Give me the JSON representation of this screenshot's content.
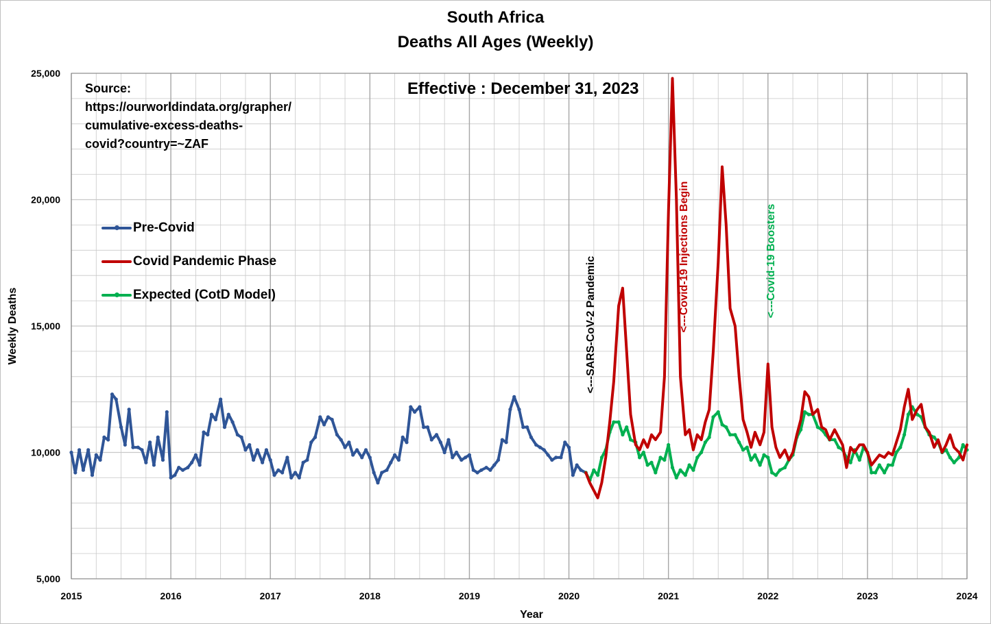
{
  "title": "South Africa",
  "subtitle": "Deaths All Ages (Weekly)",
  "source_lines": [
    "Source:",
    "https://ourworldindata.org/grapher/",
    "cumulative-excess-deaths-",
    "covid?country=~ZAF"
  ],
  "effective_label": "Effective : December 31, 2023",
  "colors": {
    "pre_covid": "#2f5597",
    "covid": "#c00000",
    "expected": "#00b050",
    "grid": "#c8c8c8",
    "annotation_black": "#000000"
  },
  "legend": [
    {
      "label": "Pre-Covid",
      "color": "#2f5597",
      "marker": true
    },
    {
      "label": "Covid Pandemic Phase",
      "color": "#c00000",
      "marker": false
    },
    {
      "label": "Expected (CotD Model)",
      "color": "#00b050",
      "marker": true
    }
  ],
  "chart_data": {
    "type": "line",
    "xlabel": "Year",
    "ylabel": "Weekly Deaths",
    "xlim": [
      2015,
      2024
    ],
    "ylim": [
      5000,
      25000
    ],
    "x_ticks": [
      "2015",
      "2016",
      "2017",
      "2018",
      "2019",
      "2020",
      "2021",
      "2022",
      "2023",
      "2024"
    ],
    "y_ticks": [
      "5,000",
      "10,000",
      "15,000",
      "20,000",
      "25,000"
    ],
    "grid": true,
    "legend_position": "left",
    "annotations": [
      {
        "text": "<---SARS-CoV-2 Pandemic",
        "x": 2020.2,
        "color": "#000000"
      },
      {
        "text": "<---Covid-19 Injections Begin",
        "x": 2021.18,
        "color": "#c00000"
      },
      {
        "text": "<---Covid-19 Boosters",
        "x": 2022.05,
        "color": "#00b050"
      }
    ],
    "series": [
      {
        "name": "Pre-Covid",
        "x": [
          2015.0,
          2015.04,
          2015.08,
          2015.12,
          2015.17,
          2015.21,
          2015.25,
          2015.29,
          2015.33,
          2015.37,
          2015.41,
          2015.45,
          2015.5,
          2015.54,
          2015.58,
          2015.62,
          2015.67,
          2015.71,
          2015.75,
          2015.79,
          2015.83,
          2015.87,
          2015.92,
          2015.96,
          2016.0,
          2016.04,
          2016.08,
          2016.12,
          2016.17,
          2016.21,
          2016.25,
          2016.29,
          2016.33,
          2016.37,
          2016.41,
          2016.45,
          2016.5,
          2016.54,
          2016.58,
          2016.62,
          2016.67,
          2016.71,
          2016.75,
          2016.79,
          2016.83,
          2016.87,
          2016.92,
          2016.96,
          2017.0,
          2017.04,
          2017.08,
          2017.12,
          2017.17,
          2017.21,
          2017.25,
          2017.29,
          2017.33,
          2017.37,
          2017.41,
          2017.45,
          2017.5,
          2017.54,
          2017.58,
          2017.62,
          2017.67,
          2017.71,
          2017.75,
          2017.79,
          2017.83,
          2017.87,
          2017.92,
          2017.96,
          2018.0,
          2018.04,
          2018.08,
          2018.12,
          2018.17,
          2018.21,
          2018.25,
          2018.29,
          2018.33,
          2018.37,
          2018.41,
          2018.45,
          2018.5,
          2018.54,
          2018.58,
          2018.62,
          2018.67,
          2018.71,
          2018.75,
          2018.79,
          2018.83,
          2018.87,
          2018.92,
          2018.96,
          2019.0,
          2019.04,
          2019.08,
          2019.12,
          2019.17,
          2019.21,
          2019.25,
          2019.29,
          2019.33,
          2019.37,
          2019.41,
          2019.45,
          2019.5,
          2019.54,
          2019.58,
          2019.62,
          2019.67,
          2019.71,
          2019.75,
          2019.79,
          2019.83,
          2019.87,
          2019.92,
          2019.96,
          2020.0,
          2020.04,
          2020.08,
          2020.12,
          2020.17
        ],
        "y": [
          10000,
          9200,
          10100,
          9300,
          10100,
          9100,
          9900,
          9700,
          10600,
          10500,
          12300,
          12100,
          11000,
          10300,
          11700,
          10200,
          10200,
          10100,
          9600,
          10400,
          9500,
          10600,
          9700,
          11600,
          9000,
          9100,
          9400,
          9300,
          9400,
          9600,
          9900,
          9500,
          10800,
          10700,
          11500,
          11300,
          12100,
          11000,
          11500,
          11200,
          10700,
          10600,
          10100,
          10300,
          9700,
          10100,
          9600,
          10100,
          9700,
          9100,
          9300,
          9200,
          9800,
          9000,
          9200,
          9000,
          9600,
          9700,
          10400,
          10600,
          11400,
          11100,
          11400,
          11300,
          10700,
          10500,
          10200,
          10400,
          9900,
          10100,
          9800,
          10100,
          9800,
          9200,
          8800,
          9200,
          9300,
          9600,
          9900,
          9700,
          10600,
          10400,
          11800,
          11600,
          11800,
          11000,
          11000,
          10500,
          10700,
          10400,
          10000,
          10500,
          9800,
          10000,
          9700,
          9800,
          9900,
          9300,
          9200,
          9300,
          9400,
          9300,
          9500,
          9700,
          10500,
          10400,
          11700,
          12200,
          11700,
          11000,
          11000,
          10600,
          10300,
          10200,
          10100,
          9900,
          9700,
          9800,
          9800,
          10400,
          10200,
          9100,
          9500,
          9300,
          9200
        ]
      },
      {
        "name": "Covid Pandemic Phase",
        "x": [
          2020.17,
          2020.21,
          2020.25,
          2020.29,
          2020.33,
          2020.37,
          2020.41,
          2020.45,
          2020.5,
          2020.54,
          2020.58,
          2020.62,
          2020.67,
          2020.71,
          2020.75,
          2020.79,
          2020.83,
          2020.87,
          2020.92,
          2020.96,
          2021.0,
          2021.04,
          2021.08,
          2021.12,
          2021.17,
          2021.21,
          2021.25,
          2021.29,
          2021.33,
          2021.37,
          2021.41,
          2021.45,
          2021.5,
          2021.54,
          2021.58,
          2021.62,
          2021.67,
          2021.71,
          2021.75,
          2021.79,
          2021.83,
          2021.87,
          2021.92,
          2021.96,
          2022.0,
          2022.04,
          2022.08,
          2022.12,
          2022.17,
          2022.21,
          2022.25,
          2022.29,
          2022.33,
          2022.37,
          2022.41,
          2022.45,
          2022.5,
          2022.54,
          2022.58,
          2022.62,
          2022.67,
          2022.71,
          2022.75,
          2022.79,
          2022.83,
          2022.87,
          2022.92,
          2022.96,
          2023.0,
          2023.04,
          2023.08,
          2023.12,
          2023.17,
          2023.21,
          2023.25,
          2023.29,
          2023.33,
          2023.37,
          2023.41,
          2023.45,
          2023.5,
          2023.54,
          2023.58,
          2023.62,
          2023.67,
          2023.71,
          2023.75,
          2023.79,
          2023.83,
          2023.87,
          2023.92,
          2023.96,
          2024.0
        ],
        "y": [
          9200,
          8800,
          8500,
          8200,
          8800,
          9800,
          11200,
          12800,
          15800,
          16500,
          14000,
          11500,
          10300,
          10100,
          10500,
          10200,
          10700,
          10500,
          10800,
          13000,
          19500,
          24800,
          20000,
          13000,
          10700,
          10900,
          10100,
          10700,
          10500,
          11200,
          11700,
          14000,
          17500,
          21300,
          19000,
          15700,
          15000,
          13000,
          11300,
          10800,
          10200,
          10800,
          10300,
          10800,
          13500,
          11000,
          10200,
          9800,
          10100,
          9700,
          10000,
          10700,
          11300,
          12400,
          12200,
          11500,
          11700,
          11000,
          10900,
          10500,
          10900,
          10600,
          10300,
          9400,
          10200,
          10000,
          10300,
          10300,
          10000,
          9500,
          9700,
          9900,
          9800,
          10000,
          9900,
          10400,
          10900,
          11800,
          12500,
          11300,
          11700,
          11900,
          11000,
          10800,
          10200,
          10500,
          10000,
          10300,
          10700,
          10200,
          10000,
          9700,
          10300
        ]
      },
      {
        "name": "Expected (CotD Model)",
        "x": [
          2020.17,
          2020.21,
          2020.25,
          2020.29,
          2020.33,
          2020.37,
          2020.41,
          2020.45,
          2020.5,
          2020.54,
          2020.58,
          2020.62,
          2020.67,
          2020.71,
          2020.75,
          2020.79,
          2020.83,
          2020.87,
          2020.92,
          2020.96,
          2021.0,
          2021.04,
          2021.08,
          2021.12,
          2021.17,
          2021.21,
          2021.25,
          2021.29,
          2021.33,
          2021.37,
          2021.41,
          2021.45,
          2021.5,
          2021.54,
          2021.58,
          2021.62,
          2021.67,
          2021.71,
          2021.75,
          2021.79,
          2021.83,
          2021.87,
          2021.92,
          2021.96,
          2022.0,
          2022.04,
          2022.08,
          2022.12,
          2022.17,
          2022.21,
          2022.25,
          2022.29,
          2022.33,
          2022.37,
          2022.41,
          2022.45,
          2022.5,
          2022.54,
          2022.58,
          2022.62,
          2022.67,
          2022.71,
          2022.75,
          2022.79,
          2022.83,
          2022.87,
          2022.92,
          2022.96,
          2023.0,
          2023.04,
          2023.08,
          2023.12,
          2023.17,
          2023.21,
          2023.25,
          2023.29,
          2023.33,
          2023.37,
          2023.41,
          2023.45,
          2023.5,
          2023.54,
          2023.58,
          2023.62,
          2023.67,
          2023.71,
          2023.75,
          2023.79,
          2023.83,
          2023.87,
          2023.92,
          2023.96,
          2024.0
        ],
        "y": [
          9200,
          8900,
          9300,
          9100,
          9800,
          10100,
          10800,
          11200,
          11200,
          10700,
          11000,
          10500,
          10400,
          9800,
          10000,
          9500,
          9600,
          9200,
          9800,
          9700,
          10300,
          9400,
          9000,
          9300,
          9100,
          9500,
          9300,
          9800,
          10000,
          10400,
          10600,
          11400,
          11600,
          11100,
          11000,
          10700,
          10700,
          10400,
          10100,
          10200,
          9700,
          9900,
          9500,
          9900,
          9800,
          9200,
          9100,
          9300,
          9400,
          9700,
          9900,
          10600,
          10900,
          11600,
          11500,
          11500,
          11000,
          10900,
          10700,
          10500,
          10500,
          10200,
          10100,
          9800,
          9600,
          10100,
          9700,
          10200,
          10000,
          9200,
          9200,
          9500,
          9200,
          9500,
          9500,
          10000,
          10200,
          10700,
          11500,
          11800,
          11500,
          11400,
          11000,
          10700,
          10600,
          10400,
          10000,
          10100,
          9800,
          9600,
          9800,
          10300,
          10100
        ]
      }
    ]
  }
}
